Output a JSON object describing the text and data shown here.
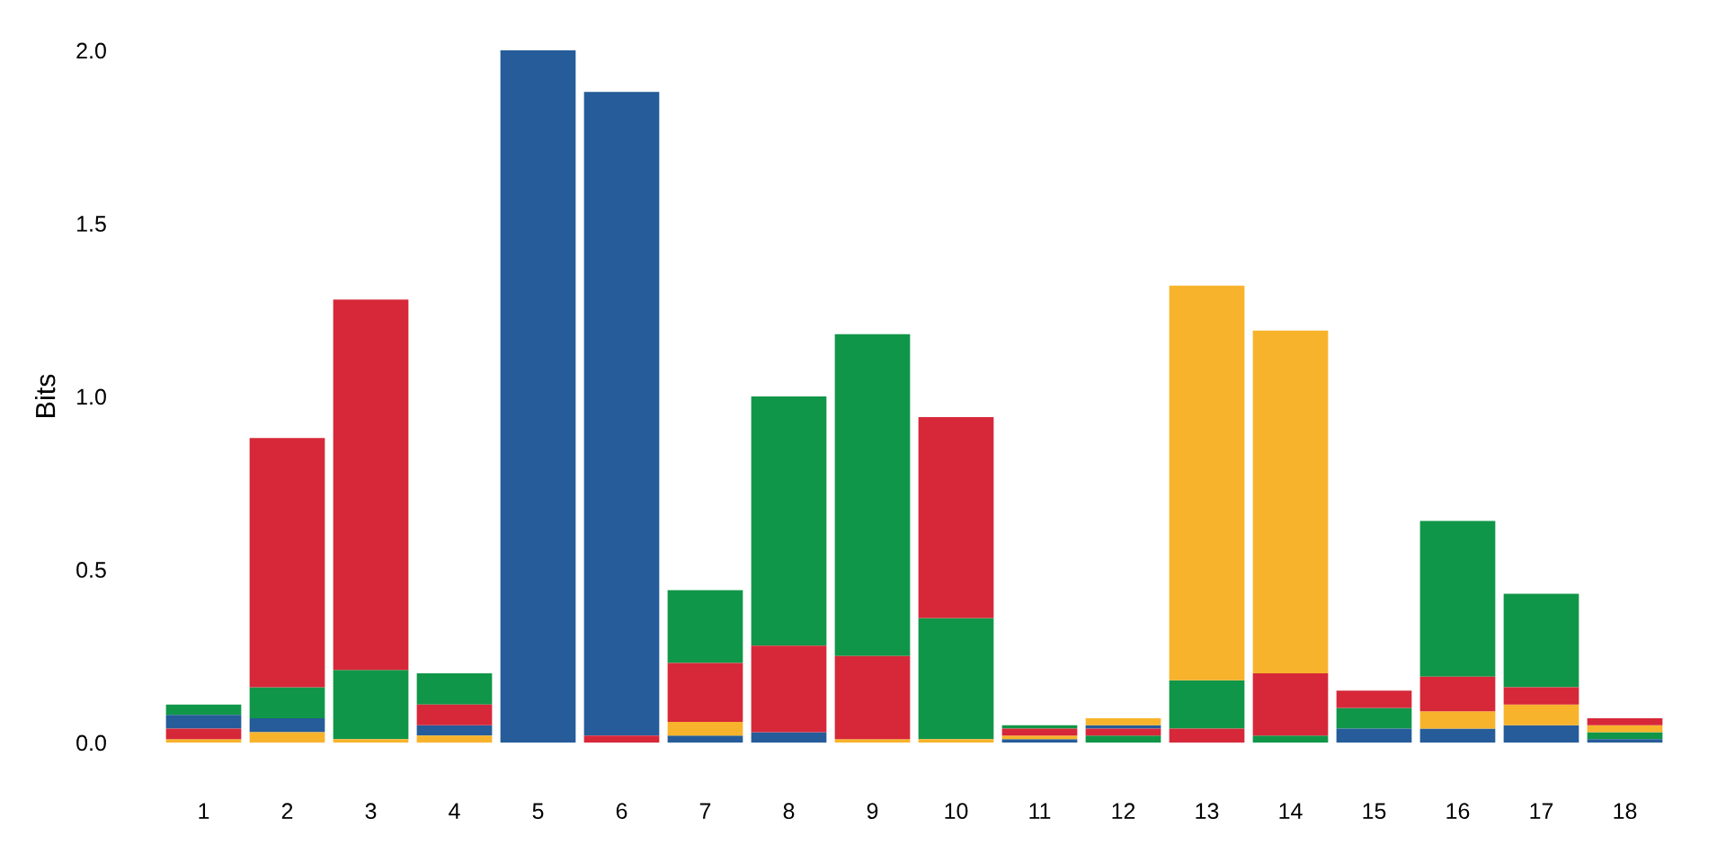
{
  "chart_data": {
    "type": "bar",
    "ylabel": "Bits",
    "categories": [
      "1",
      "2",
      "3",
      "4",
      "5",
      "6",
      "7",
      "8",
      "9",
      "10",
      "11",
      "12",
      "13",
      "14",
      "15",
      "16",
      "17",
      "18"
    ],
    "series": [
      {
        "color": "#109648",
        "values": [
          0.03,
          0.09,
          0.2,
          0.09,
          null,
          null,
          0.21,
          0.72,
          0.93,
          0.35,
          0.01,
          0.02,
          0.14,
          0.02,
          0.06,
          0.45,
          0.27,
          0.02
        ],
        "base": [
          0.08,
          0.07,
          0.01,
          0.11,
          null,
          null,
          0.23,
          0.28,
          0.25,
          0.01,
          0.04,
          0,
          0.04,
          0,
          0.04,
          0.19,
          0.16,
          0.01
        ]
      },
      {
        "color": "#255c99",
        "values": [
          0.04,
          0.04,
          null,
          0.03,
          2.0,
          1.86,
          0.02,
          0.03,
          null,
          null,
          0.01,
          0.01,
          null,
          null,
          0.04,
          0.04,
          0.05,
          0.01
        ],
        "base": [
          0.04,
          0.03,
          null,
          0.02,
          0,
          0.02,
          0,
          0,
          null,
          null,
          0,
          0.04,
          null,
          null,
          0,
          0,
          0,
          0
        ]
      },
      {
        "color": "#f7b32b",
        "values": [
          0.01,
          0.03,
          0.01,
          0.02,
          null,
          null,
          0.04,
          null,
          0.01,
          0.01,
          0.01,
          0.02,
          1.14,
          0.99,
          null,
          0.05,
          0.06,
          0.02
        ],
        "base": [
          0,
          0,
          0,
          0,
          null,
          null,
          0.02,
          null,
          0,
          0,
          0.01,
          0.05,
          0.18,
          0.2,
          null,
          0.04,
          0.05,
          0.03
        ]
      },
      {
        "color": "#d62839",
        "values": [
          0.03,
          0.72,
          1.07,
          0.06,
          null,
          0.02,
          0.17,
          0.25,
          0.24,
          0.58,
          0.02,
          0.02,
          0.04,
          0.18,
          0.05,
          0.1,
          0.05,
          0.02
        ],
        "base": [
          0.01,
          0.16,
          0.21,
          0.05,
          null,
          0,
          0.06,
          0.03,
          0.01,
          0.36,
          0.02,
          0.02,
          0,
          0.02,
          0.1,
          0.09,
          0.11,
          0.05
        ]
      }
    ],
    "ylim": [
      0,
      2.0
    ],
    "yticks": [
      {
        "value": 0,
        "label": "0.0"
      },
      {
        "value": 0.5,
        "label": "0.5"
      },
      {
        "value": 1.0,
        "label": "1.0"
      },
      {
        "value": 1.5,
        "label": "1.5"
      },
      {
        "value": 2.0,
        "label": "2.0"
      }
    ],
    "grid": false
  }
}
